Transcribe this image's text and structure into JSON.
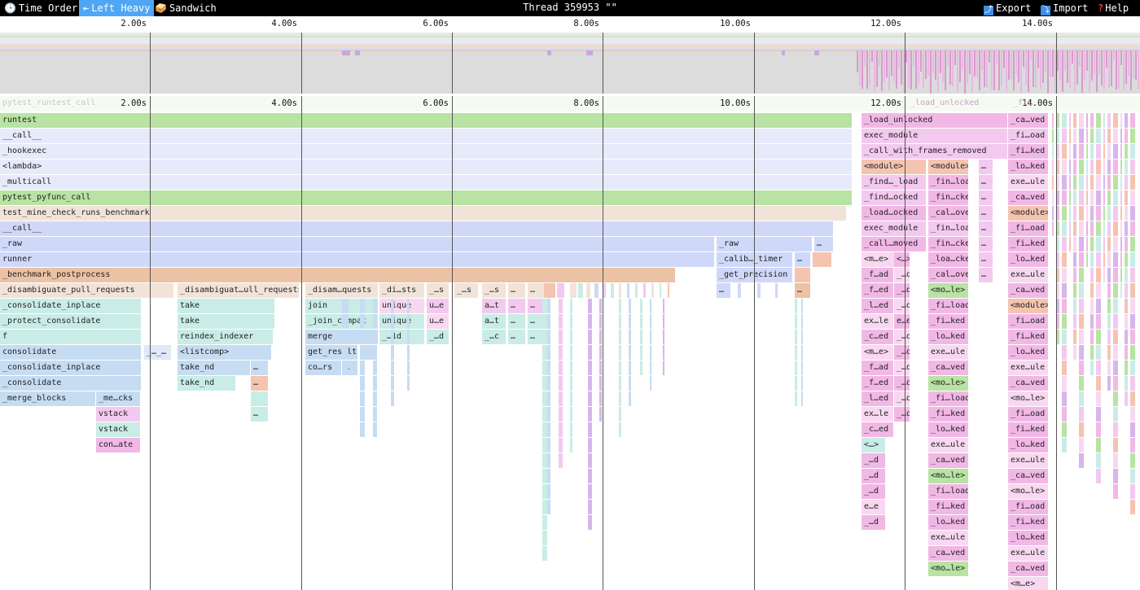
{
  "toolbar": {
    "time_order": "Time Order",
    "left_heavy": "Left Heavy",
    "sandwich": "Sandwich",
    "title": "Thread 359953 \"\"",
    "export": "Export",
    "import": "Import",
    "help": "Help",
    "icons": {
      "time_order": "clock-icon",
      "left_heavy": "left-align-icon",
      "sandwich": "sandwich-icon",
      "export": "export-icon",
      "import": "import-icon",
      "help": "help-icon"
    }
  },
  "ruler": {
    "ticks": [
      "2.00s",
      "4.00s",
      "6.00s",
      "8.00s",
      "10.00s",
      "12.00s",
      "14.00s"
    ]
  },
  "flame": {
    "root_label": "pytest_runtest_call",
    "overlay_labels": [
      "_load_unlocked",
      "_fi…"
    ],
    "main_stack": [
      "runtest",
      "__call__",
      "_hookexec",
      "<lambda>",
      "_multicall",
      "pytest_pyfunc_call",
      "test_mine_check_runs_benchmark",
      "__call__",
      "_raw",
      "runner",
      "_benchmark_postprocess",
      "_disambiguate_pull_requests",
      "_consolidate_inplace",
      "_protect_consolidate",
      "f",
      "consolidate",
      "_consolidate_inplace",
      "_consolidate",
      "_merge_blocks"
    ],
    "branch_a": [
      "_me…cks",
      "vstack",
      "vstack",
      "con…ate"
    ],
    "branch_b": [
      "_disambiguat…ull_requests",
      "take",
      "take",
      "reindex_indexer",
      "<listcomp>",
      "take_nd",
      "take_nd"
    ],
    "branch_c": [
      "_disam…quests",
      "join",
      "_join_compat",
      "merge",
      "get_result",
      "co…rs"
    ],
    "branch_d": [
      "_di…sts",
      "unique",
      "unique",
      "_…1d"
    ],
    "small_labels": [
      "_…s",
      "u…e",
      "u…e",
      "_…d",
      "_…s",
      "_…s",
      "a…t",
      "a…t",
      "_…c",
      "…",
      "_…_…"
    ],
    "raw_branch": [
      "_raw",
      "_calib…_timer",
      "_get_precision"
    ],
    "right_col1": [
      "_load_unlocked",
      "exec_module",
      "_call_with_frames_removed",
      "<module>",
      "_find…_load",
      "_find…ocked",
      "_load…ocked",
      "exec_module",
      "_call…moved",
      "<m…e>",
      "_f…ad",
      "_f…ed",
      "_l…ed",
      "ex…le",
      "_c…ed",
      "<m…e>",
      "_f…ad",
      "_f…ed",
      "_l…ed",
      "ex…le",
      "_c…ed",
      "<…>",
      "_…d",
      "_…d",
      "_…d",
      "e…e",
      "_…d"
    ],
    "right_col1b": [
      "<module>",
      "_fin…load",
      "_fin…cked",
      "_cal…oved",
      "_fin…load",
      "_fin…cked",
      "_loa…cked",
      "_cal…oved",
      "<mo…le>",
      "_fi…load",
      "_fi…ked",
      "_lo…ked",
      "exe…ule",
      "_ca…ved",
      "<mo…le>",
      "_fi…load",
      "_fi…ked",
      "_lo…ked",
      "exe…ule",
      "_ca…ved",
      "<mo…le>",
      "_fi…load",
      "_fi…ked",
      "_lo…ked",
      "exe…ule",
      "_ca…ved",
      "<mo…le>"
    ],
    "right_col2": [
      "_ca…ved",
      "_fi…oad",
      "_fi…ked",
      "_lo…ked",
      "exe…ule",
      "_ca…ved",
      "<module>",
      "_fi…oad",
      "_fi…ked",
      "_lo…ked",
      "exe…ule",
      "_ca…ved",
      "<module>",
      "_fi…oad",
      "_fi…ked",
      "_lo…ked",
      "exe…ule",
      "_ca…ved",
      "<mo…le>",
      "_fi…oad",
      "_fi…ked",
      "_lo…ked",
      "exe…ule",
      "_ca…ved",
      "<mo…le>",
      "_fi…oad",
      "_fi…ked",
      "_lo…ked",
      "exe…ule",
      "_ca…ved",
      "<m…e>"
    ],
    "small_right": [
      "<…>",
      "_…d",
      "e…e"
    ]
  },
  "colors": {
    "toolbar_bg": "#000000",
    "active_tab": "#4ea6f5",
    "green": "#b8e3a3",
    "lav": "#e6eafb",
    "peach": "#f2e3d8",
    "blue_l": "#cfd8f8",
    "orange": "#ebc2a4",
    "pink": "#f1b8e6",
    "teal": "#c9ece6",
    "sky": "#c6dcf2"
  }
}
